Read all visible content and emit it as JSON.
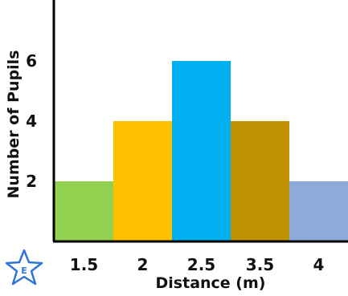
{
  "chart_data": {
    "type": "bar",
    "title": "",
    "xlabel": "Distance (m)",
    "ylabel": "Number of Pupils",
    "categories": [
      "1.5",
      "2",
      "2.5",
      "3.5",
      "4"
    ],
    "values": [
      2,
      4,
      6,
      4,
      2
    ],
    "colors": [
      "#92d050",
      "#ffc000",
      "#00b0f0",
      "#bf9000",
      "#8eaadb"
    ],
    "yticks": [
      2,
      4,
      6
    ],
    "ylim": [
      0,
      8
    ],
    "grid": false,
    "legend": "none"
  },
  "badge": {
    "letter": "E",
    "icon": "star-icon",
    "color": "#2e75d6"
  }
}
